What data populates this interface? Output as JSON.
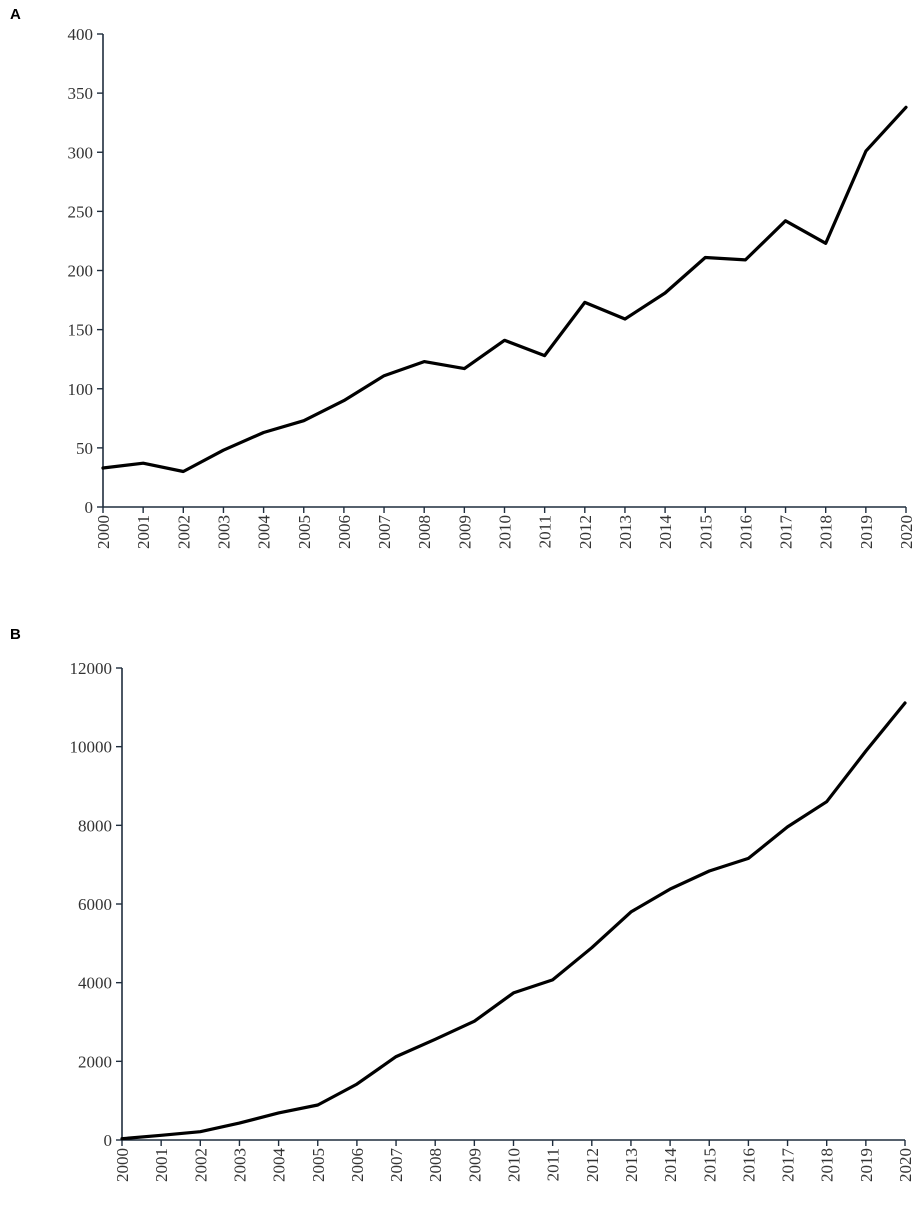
{
  "chart_data": [
    {
      "type": "line",
      "panel_label": "A",
      "title": "",
      "xlabel": "",
      "ylabel": "",
      "categories": [
        "2000",
        "2001",
        "2002",
        "2003",
        "2004",
        "2005",
        "2006",
        "2007",
        "2008",
        "2009",
        "2010",
        "2011",
        "2012",
        "2013",
        "2014",
        "2015",
        "2016",
        "2017",
        "2018",
        "2019",
        "2020"
      ],
      "y_ticks": [
        "0",
        "50",
        "100",
        "150",
        "200",
        "250",
        "300",
        "350",
        "400"
      ],
      "ylim": [
        0,
        400
      ],
      "grid": false,
      "series": [
        {
          "values": [
            33,
            37,
            30,
            48,
            63,
            73,
            90,
            111,
            123,
            117,
            141,
            128,
            173,
            159,
            181,
            211,
            209,
            242,
            223,
            301,
            338
          ]
        }
      ]
    },
    {
      "type": "line",
      "panel_label": "B",
      "title": "",
      "xlabel": "",
      "ylabel": "",
      "categories": [
        "2000",
        "2001",
        "2002",
        "2003",
        "2004",
        "2005",
        "2006",
        "2007",
        "2008",
        "2009",
        "2010",
        "2011",
        "2012",
        "2013",
        "2014",
        "2015",
        "2016",
        "2017",
        "2018",
        "2019",
        "2020"
      ],
      "y_ticks": [
        "0",
        "2000",
        "4000",
        "6000",
        "8000",
        "10000",
        "12000"
      ],
      "ylim": [
        0,
        12000
      ],
      "grid": false,
      "series": [
        {
          "values": [
            33,
            120,
            210,
            430,
            690,
            890,
            1420,
            2120,
            2560,
            3020,
            3740,
            4070,
            4890,
            5800,
            6380,
            6840,
            7160,
            7960,
            8600,
            9890,
            11110
          ]
        }
      ]
    }
  ]
}
